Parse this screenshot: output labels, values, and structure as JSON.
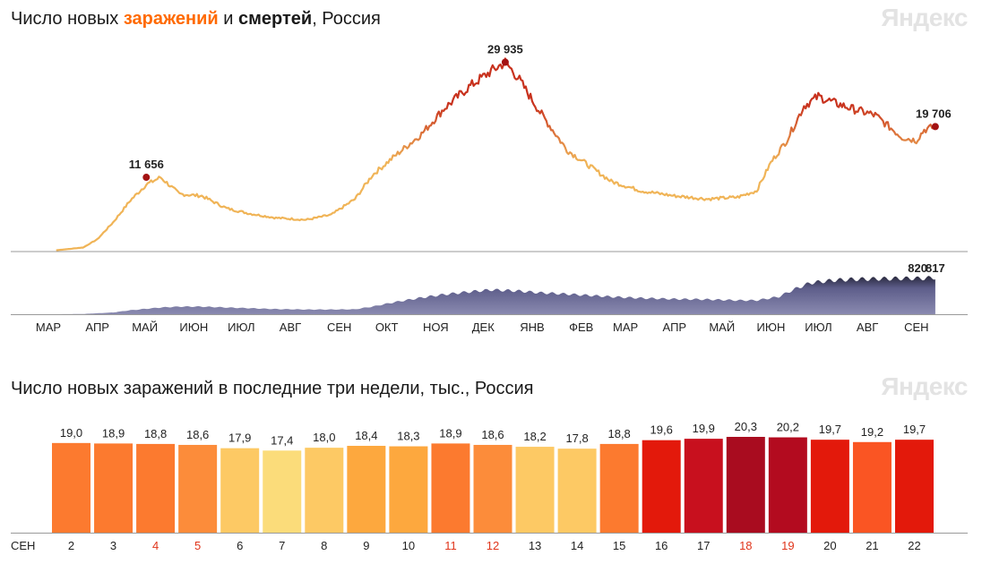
{
  "top_title": {
    "prefix": "Число новых ",
    "infections": "заражений",
    "middle": " и ",
    "deaths": "смертей",
    "suffix": ", Россия"
  },
  "bottom_title": "Число новых заражений в последние три недели, тыс., Россия",
  "logo_text": "Яндекс",
  "colors": {
    "infections_accent": "#ff6a00",
    "line_light": "#f0b457",
    "line_dark": "#c8321e",
    "deaths_area": "#5d5d8a",
    "deaths_area_dark": "#1f1f2e",
    "peak_marker": "#a31212",
    "weekend_label": "#e0351b"
  },
  "chart_data": [
    {
      "type": "line",
      "series_kind": "daily new infections",
      "month_labels": [
        "МАР",
        "АПР",
        "МАЙ",
        "ИЮН",
        "ИЮЛ",
        "АВГ",
        "СЕН",
        "ОКТ",
        "НОЯ",
        "ДЕК",
        "ЯНВ",
        "ФЕВ",
        "МАР",
        "АПР",
        "МАЙ",
        "ИЮН",
        "ИЮЛ",
        "АВГ",
        "СЕН"
      ],
      "x": [
        "2020-03-15",
        "2020-04-01",
        "2020-04-10",
        "2020-04-20",
        "2020-05-01",
        "2020-05-11",
        "2020-05-20",
        "2020-06-01",
        "2020-06-15",
        "2020-07-01",
        "2020-07-15",
        "2020-08-01",
        "2020-08-20",
        "2020-09-05",
        "2020-09-20",
        "2020-10-01",
        "2020-10-15",
        "2020-11-01",
        "2020-11-15",
        "2020-12-01",
        "2020-12-15",
        "2020-12-24",
        "2021-01-01",
        "2021-01-15",
        "2021-02-01",
        "2021-02-15",
        "2021-03-01",
        "2021-03-20",
        "2021-04-10",
        "2021-05-01",
        "2021-05-20",
        "2021-06-01",
        "2021-06-10",
        "2021-06-20",
        "2021-07-01",
        "2021-07-10",
        "2021-07-20",
        "2021-08-01",
        "2021-08-15",
        "2021-09-01",
        "2021-09-10",
        "2021-09-15",
        "2021-09-22"
      ],
      "y": [
        60,
        500,
        1800,
        4500,
        8000,
        10500,
        11656,
        9000,
        8700,
        6700,
        5900,
        5200,
        4900,
        5700,
        8200,
        12000,
        15000,
        18500,
        22500,
        26000,
        28500,
        29935,
        27500,
        22000,
        16000,
        13500,
        11000,
        9500,
        8700,
        8200,
        8500,
        9500,
        14000,
        17500,
        23000,
        24500,
        23500,
        22500,
        21500,
        18000,
        17500,
        19200,
        19706
      ],
      "y_range": [
        0,
        31000
      ],
      "annotations": [
        {
          "label": "11 656",
          "value": 11656,
          "x": "2020-05-11"
        },
        {
          "label": "29 935",
          "value": 29935,
          "x": "2020-12-24"
        },
        {
          "label": "19 706",
          "value": 19706,
          "x": "2021-09-22"
        }
      ]
    },
    {
      "type": "area",
      "series_kind": "daily deaths",
      "x": [
        "2020-03-15",
        "2020-04-01",
        "2020-04-20",
        "2020-05-01",
        "2020-05-20",
        "2020-06-01",
        "2020-06-15",
        "2020-07-01",
        "2020-07-15",
        "2020-08-01",
        "2020-08-20",
        "2020-09-05",
        "2020-09-20",
        "2020-10-01",
        "2020-10-15",
        "2020-11-01",
        "2020-11-15",
        "2020-12-01",
        "2020-12-15",
        "2021-01-01",
        "2021-01-15",
        "2021-02-01",
        "2021-02-15",
        "2021-03-01",
        "2021-03-20",
        "2021-04-10",
        "2021-05-01",
        "2021-05-20",
        "2021-06-01",
        "2021-06-15",
        "2021-06-25",
        "2021-07-05",
        "2021-07-20",
        "2021-08-01",
        "2021-08-15",
        "2021-09-01",
        "2021-09-15",
        "2021-09-21",
        "2021-09-22"
      ],
      "y": [
        0,
        5,
        40,
        90,
        150,
        170,
        170,
        150,
        135,
        115,
        105,
        105,
        110,
        170,
        270,
        370,
        440,
        500,
        545,
        520,
        480,
        450,
        420,
        390,
        360,
        340,
        330,
        310,
        310,
        390,
        560,
        700,
        760,
        780,
        790,
        800,
        800,
        820,
        817
      ],
      "y_range": [
        0,
        900
      ],
      "annotations": [
        {
          "label": "820",
          "value": 820,
          "x": "2021-09-21"
        },
        {
          "label": "817",
          "value": 817,
          "x": "2021-09-22"
        }
      ]
    },
    {
      "type": "bar",
      "month_label": "СЕН",
      "categories": [
        "2",
        "3",
        "4",
        "5",
        "6",
        "7",
        "8",
        "9",
        "10",
        "11",
        "12",
        "13",
        "14",
        "15",
        "16",
        "17",
        "18",
        "19",
        "20",
        "21",
        "22"
      ],
      "values": [
        19.0,
        18.9,
        18.8,
        18.6,
        17.9,
        17.4,
        18.0,
        18.4,
        18.3,
        18.9,
        18.6,
        18.2,
        17.8,
        18.8,
        19.6,
        19.9,
        20.3,
        20.2,
        19.7,
        19.2,
        19.7
      ],
      "value_labels": [
        "19,0",
        "18,9",
        "18,8",
        "18,6",
        "17,9",
        "17,4",
        "18,0",
        "18,4",
        "18,3",
        "18,9",
        "18,6",
        "18,2",
        "17,8",
        "18,8",
        "19,6",
        "19,9",
        "20,3",
        "20,2",
        "19,7",
        "19,2",
        "19,7"
      ],
      "weekend_categories": [
        "4",
        "5",
        "11",
        "12",
        "18",
        "19"
      ],
      "bar_colors": [
        "#fc7a2f",
        "#fc7a2f",
        "#fc7a2f",
        "#fc8c3a",
        "#fdc964",
        "#fbdc7a",
        "#fdc964",
        "#fda83e",
        "#fda83e",
        "#fc7a2f",
        "#fc8c3a",
        "#fdc964",
        "#fdc964",
        "#fc7a2f",
        "#e3190b",
        "#c8101e",
        "#a90c1f",
        "#b30b1f",
        "#e3190b",
        "#fa5523",
        "#e3190b"
      ]
    }
  ]
}
